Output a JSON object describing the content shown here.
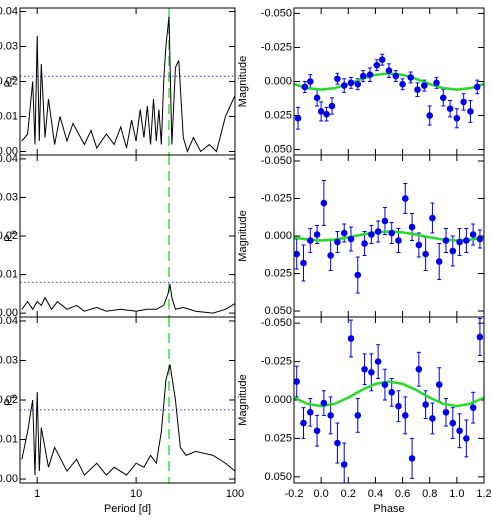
{
  "chart_data": [
    {
      "type": "line",
      "ylabel": "P",
      "ylabel_subscript": "n",
      "log_x": true,
      "xlim": [
        0.67,
        100
      ],
      "ylim": [
        -0.001,
        0.041
      ],
      "yticks": [
        {
          "value": 0,
          "label": "0.00"
        },
        {
          "value": 0.01,
          "label": "0.01"
        },
        {
          "value": 0.02,
          "label": "0.02"
        },
        {
          "value": 0.03,
          "label": "0.03"
        },
        {
          "value": 0.04,
          "label": "0.04"
        }
      ],
      "color": "#000000",
      "threshold": 0.0215,
      "threshold_color": "#3333ff",
      "marker_x": 21.5,
      "marker_color": "#77dd77",
      "x": [
        0.7,
        0.8,
        0.9,
        0.95,
        1.0,
        1.05,
        1.1,
        1.2,
        1.3,
        1.5,
        1.7,
        2,
        2.3,
        3,
        3.5,
        4,
        5,
        6,
        7,
        8,
        9,
        10,
        11,
        12,
        13,
        14,
        15,
        16,
        17,
        18,
        19,
        20,
        21.5,
        23,
        25,
        27,
        30,
        33,
        38,
        45,
        55,
        65,
        80,
        100
      ],
      "values": [
        0.003,
        0.005,
        0.02,
        0.002,
        0.033,
        0.003,
        0.025,
        0.004,
        0.015,
        0.002,
        0.01,
        0.003,
        0.008,
        0.002,
        0.006,
        0.001,
        0.005,
        0.002,
        0.007,
        0.001,
        0.009,
        0.003,
        0.012,
        0.004,
        0.013,
        0.002,
        0.015,
        0.003,
        0.012,
        0.002,
        0.02,
        0.03,
        0.0385,
        0.002,
        0.024,
        0.026,
        0.004,
        0.0,
        0.004,
        0.0,
        0.002,
        0.0,
        0.01,
        0.016
      ]
    },
    {
      "type": "line",
      "ylabel": "P",
      "ylabel_subscript": "n",
      "log_x": true,
      "xlim": [
        0.67,
        100
      ],
      "ylim": [
        -0.001,
        0.041
      ],
      "yticks": [
        {
          "value": 0,
          "label": "0.00"
        },
        {
          "value": 0.01,
          "label": "0.01"
        },
        {
          "value": 0.02,
          "label": "0.02"
        },
        {
          "value": 0.03,
          "label": "0.03"
        },
        {
          "value": 0.04,
          "label": "0.04"
        }
      ],
      "color": "#000000",
      "threshold": 0.008,
      "threshold_color": "#3333ff",
      "marker_x": 21.5,
      "marker_color": "#77dd77",
      "x": [
        0.7,
        0.8,
        0.9,
        1.0,
        1.1,
        1.2,
        1.4,
        1.6,
        2,
        2.5,
        3,
        4,
        5,
        7,
        10,
        13,
        16,
        19,
        21,
        22,
        23,
        25,
        30,
        40,
        60,
        80,
        100
      ],
      "values": [
        0.001,
        0.003,
        0.001,
        0.003,
        0.002,
        0.004,
        0.001,
        0.003,
        0.001,
        0.002,
        0.0005,
        0.0015,
        0.0005,
        0.001,
        0.0005,
        0.001,
        0.001,
        0.002,
        0.005,
        0.0075,
        0.004,
        0.001,
        0.0015,
        0.0005,
        0.0,
        0.001,
        0.0025
      ]
    },
    {
      "type": "line",
      "ylabel": "P",
      "ylabel_subscript": "n",
      "xlabel": "Period [d]",
      "log_x": true,
      "xlim": [
        0.67,
        100
      ],
      "ylim": [
        -0.001,
        0.041
      ],
      "xticks": [
        1,
        10,
        100
      ],
      "yticks": [
        {
          "value": 0,
          "label": "0.00"
        },
        {
          "value": 0.01,
          "label": "0.01"
        },
        {
          "value": 0.02,
          "label": "0.02"
        },
        {
          "value": 0.03,
          "label": "0.03"
        },
        {
          "value": 0.04,
          "label": "0.04"
        }
      ],
      "color": "#000000",
      "threshold": 0.0175,
      "threshold_color": "#3333ff",
      "marker_x": 21.5,
      "marker_color": "#77dd77",
      "x": [
        0.7,
        0.8,
        0.9,
        0.95,
        1.0,
        1.05,
        1.1,
        1.3,
        1.5,
        2,
        2.5,
        3,
        4,
        5,
        6,
        8,
        10,
        12,
        14,
        16,
        18,
        20,
        22,
        25,
        28,
        32,
        40,
        60,
        80,
        100
      ],
      "values": [
        0.005,
        0.012,
        0.02,
        0.001,
        0.022,
        0.002,
        0.013,
        0.003,
        0.008,
        0.002,
        0.005,
        0.001,
        0.004,
        0.001,
        0.003,
        0.001,
        0.004,
        0.003,
        0.006,
        0.004,
        0.012,
        0.025,
        0.029,
        0.02,
        0.008,
        0.006,
        0.007,
        0.006,
        0.004,
        0.002
      ]
    },
    {
      "type": "scatter",
      "ylabel": "Magnitude",
      "xlim": [
        -0.2,
        1.2
      ],
      "ylim": [
        0.054,
        -0.054
      ],
      "yticks": [
        {
          "value": -0.05,
          "label": "-0.050"
        },
        {
          "value": -0.025,
          "label": "-0.025"
        },
        {
          "value": 0,
          "label": "0.000"
        },
        {
          "value": 0.025,
          "label": "0.025"
        },
        {
          "value": 0.05,
          "label": "0.050"
        }
      ],
      "color": "#0000ee",
      "fit_color": "#22dd22",
      "x": [
        -0.17,
        -0.12,
        -0.08,
        -0.03,
        0.0,
        0.04,
        0.08,
        0.12,
        0.17,
        0.22,
        0.27,
        0.31,
        0.36,
        0.41,
        0.45,
        0.5,
        0.55,
        0.6,
        0.66,
        0.71,
        0.76,
        0.8,
        0.85,
        0.9,
        0.95,
        1.0,
        1.05,
        1.1,
        1.15
      ],
      "values": [
        0.027,
        0.004,
        0.0,
        0.012,
        0.022,
        0.024,
        0.018,
        -0.002,
        0.003,
        0.001,
        0.002,
        -0.004,
        -0.005,
        -0.012,
        -0.016,
        -0.008,
        -0.004,
        0.002,
        -0.003,
        0.006,
        0.003,
        0.025,
        0.001,
        0.012,
        0.02,
        0.027,
        0.015,
        0.022,
        0.004
      ],
      "errors": [
        0.008,
        0.004,
        0.005,
        0.006,
        0.007,
        0.005,
        0.006,
        0.004,
        0.005,
        0.004,
        0.004,
        0.004,
        0.005,
        0.004,
        0.004,
        0.005,
        0.004,
        0.004,
        0.004,
        0.005,
        0.004,
        0.007,
        0.004,
        0.006,
        0.006,
        0.007,
        0.006,
        0.008,
        0.005
      ],
      "fit_x": [
        -0.2,
        -0.1,
        0.0,
        0.1,
        0.2,
        0.3,
        0.4,
        0.5,
        0.6,
        0.7,
        0.8,
        0.9,
        1.0,
        1.1,
        1.2
      ],
      "fit_values": [
        0.0019,
        0.0049,
        0.006,
        0.0049,
        0.0019,
        -0.0019,
        -0.0049,
        -0.006,
        -0.0049,
        -0.0019,
        0.0019,
        0.0049,
        0.006,
        0.0049,
        0.0019
      ]
    },
    {
      "type": "scatter",
      "ylabel": "Magnitude",
      "xlim": [
        -0.2,
        1.2
      ],
      "ylim": [
        0.054,
        -0.054
      ],
      "yticks": [
        {
          "value": -0.05,
          "label": "-0.050"
        },
        {
          "value": -0.025,
          "label": "-0.025"
        },
        {
          "value": 0,
          "label": "0.000"
        },
        {
          "value": 0.025,
          "label": "0.025"
        },
        {
          "value": 0.05,
          "label": "0.050"
        }
      ],
      "color": "#0000ee",
      "fit_color": "#22dd22",
      "x": [
        -0.18,
        -0.13,
        -0.08,
        -0.03,
        0.02,
        0.07,
        0.12,
        0.17,
        0.22,
        0.27,
        0.32,
        0.37,
        0.42,
        0.47,
        0.52,
        0.57,
        0.62,
        0.67,
        0.72,
        0.77,
        0.82,
        0.87,
        0.92,
        0.97,
        1.02,
        1.07,
        1.12,
        1.17
      ],
      "values": [
        0.012,
        0.018,
        0.003,
        -0.001,
        -0.022,
        0.013,
        0.004,
        -0.002,
        0.002,
        0.026,
        0.005,
        -0.001,
        -0.003,
        -0.01,
        -0.002,
        0.003,
        -0.025,
        -0.006,
        0.006,
        0.012,
        -0.012,
        0.017,
        0.003,
        0.01,
        0.004,
        0.003,
        -0.001,
        0.002
      ],
      "errors": [
        0.01,
        0.012,
        0.008,
        0.006,
        0.015,
        0.01,
        0.007,
        0.006,
        0.008,
        0.012,
        0.008,
        0.006,
        0.007,
        0.009,
        0.007,
        0.008,
        0.01,
        0.009,
        0.008,
        0.011,
        0.01,
        0.012,
        0.008,
        0.01,
        0.009,
        0.008,
        0.007,
        0.006
      ],
      "fit_x": [
        -0.2,
        -0.1,
        0.0,
        0.1,
        0.2,
        0.3,
        0.4,
        0.5,
        0.6,
        0.7,
        0.8,
        0.9,
        1.0,
        1.1,
        1.2
      ],
      "fit_values": [
        0.0009,
        0.0024,
        0.003,
        0.0024,
        0.0009,
        -0.0009,
        -0.0024,
        -0.003,
        -0.0024,
        -0.0009,
        0.0009,
        0.0024,
        0.003,
        0.0024,
        0.0009
      ]
    },
    {
      "type": "scatter",
      "ylabel": "Magnitude",
      "xlabel": "Phase",
      "xlim": [
        -0.2,
        1.2
      ],
      "ylim": [
        0.054,
        -0.054
      ],
      "xticks": [
        -0.2,
        {
          "value": 0,
          "label": "0.0"
        },
        0.2,
        0.4,
        0.6,
        0.8,
        {
          "value": 1,
          "label": "1.0"
        },
        1.2
      ],
      "yticks": [
        {
          "value": -0.05,
          "label": "-0.050"
        },
        {
          "value": -0.025,
          "label": "-0.025"
        },
        {
          "value": 0,
          "label": "0.000"
        },
        {
          "value": 0.025,
          "label": "0.025"
        },
        {
          "value": 0.05,
          "label": "0.050"
        }
      ],
      "color": "#0000ee",
      "fit_color": "#22dd22",
      "x": [
        -0.18,
        -0.13,
        -0.08,
        -0.03,
        0.02,
        0.07,
        0.12,
        0.17,
        0.22,
        0.27,
        0.32,
        0.37,
        0.42,
        0.47,
        0.52,
        0.57,
        0.62,
        0.67,
        0.72,
        0.77,
        0.82,
        0.87,
        0.92,
        0.97,
        1.02,
        1.07,
        1.12,
        1.17
      ],
      "values": [
        -0.012,
        0.015,
        0.008,
        0.02,
        0.002,
        0.01,
        0.028,
        0.042,
        -0.04,
        0.01,
        -0.02,
        -0.018,
        -0.025,
        -0.01,
        -0.005,
        0.004,
        0.01,
        0.038,
        -0.02,
        0.003,
        0.012,
        -0.01,
        0.008,
        0.015,
        0.02,
        0.025,
        0.005,
        -0.041
      ],
      "errors": [
        0.01,
        0.01,
        0.009,
        0.01,
        0.008,
        0.012,
        0.013,
        0.014,
        0.012,
        0.011,
        0.01,
        0.012,
        0.011,
        0.01,
        0.009,
        0.01,
        0.012,
        0.013,
        0.011,
        0.009,
        0.01,
        0.011,
        0.009,
        0.01,
        0.011,
        0.012,
        0.01,
        0.012
      ],
      "fit_x": [
        -0.2,
        -0.1,
        0.0,
        0.1,
        0.2,
        0.3,
        0.4,
        0.5,
        0.6,
        0.7,
        0.8,
        0.9,
        1.0,
        1.1,
        1.2
      ],
      "fit_values": [
        -0.0015,
        0.0025,
        0.004,
        0.0025,
        -0.0015,
        -0.0065,
        -0.0105,
        -0.012,
        -0.0105,
        -0.0065,
        -0.0015,
        0.0025,
        0.004,
        0.0025,
        -0.0015
      ]
    }
  ]
}
